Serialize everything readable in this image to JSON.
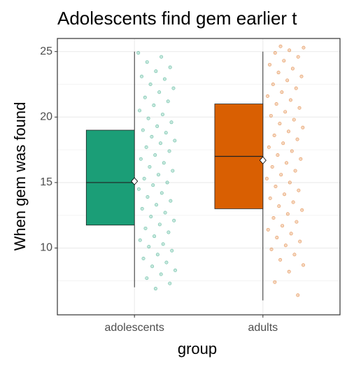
{
  "chart_data": {
    "type": "boxplot",
    "title": "Adolescents find gem earlier t",
    "x_label": "group",
    "y_label": "When gem was found",
    "categories": [
      "adolescents",
      "adults"
    ],
    "ylim": [
      4.9,
      26
    ],
    "yticks": [
      10,
      15,
      20,
      25
    ],
    "grid": true,
    "series": [
      {
        "name": "adolescents",
        "color": "#1b9e77",
        "whisker_low": 7,
        "q1": 11.75,
        "median": 15,
        "q3": 19,
        "whisker_high": 25,
        "mean": 15.1,
        "points": [
          24.9,
          24.6,
          24.2,
          23.8,
          23.5,
          23.1,
          22.9,
          22.5,
          22.2,
          21.9,
          21.5,
          21.2,
          20.9,
          20.5,
          20.2,
          19.9,
          19.6,
          19.3,
          19.0,
          18.8,
          18.5,
          18.2,
          18.0,
          17.7,
          17.4,
          17.1,
          16.8,
          16.5,
          16.2,
          15.9,
          15.6,
          15.3,
          15.0,
          14.8,
          14.5,
          14.2,
          13.9,
          13.6,
          13.3,
          13.0,
          12.7,
          12.4,
          12.1,
          11.8,
          11.5,
          11.2,
          10.9,
          10.6,
          10.3,
          10.1,
          9.8,
          9.5,
          9.2,
          8.9,
          8.6,
          8.3,
          8.0,
          7.7,
          7.3,
          6.9
        ]
      },
      {
        "name": "adults",
        "color": "#d95f02",
        "whisker_low": 6,
        "q1": 13,
        "median": 17,
        "q3": 21,
        "whisker_high": 25,
        "mean": 16.7,
        "points": [
          25.4,
          25.3,
          25.1,
          24.9,
          24.6,
          24.3,
          24.0,
          23.7,
          23.4,
          23.1,
          22.8,
          22.5,
          22.2,
          21.9,
          21.6,
          21.3,
          21.0,
          20.7,
          20.4,
          20.1,
          19.8,
          19.5,
          19.2,
          18.9,
          18.6,
          18.3,
          18.0,
          17.7,
          17.4,
          17.1,
          16.8,
          16.5,
          16.2,
          15.9,
          15.6,
          15.3,
          15.0,
          14.7,
          14.4,
          14.1,
          13.8,
          13.5,
          13.2,
          12.9,
          12.6,
          12.3,
          12.0,
          11.7,
          11.4,
          11.1,
          10.8,
          10.5,
          10.2,
          9.9,
          9.5,
          9.1,
          8.7,
          8.2,
          7.4,
          6.4
        ]
      }
    ]
  }
}
